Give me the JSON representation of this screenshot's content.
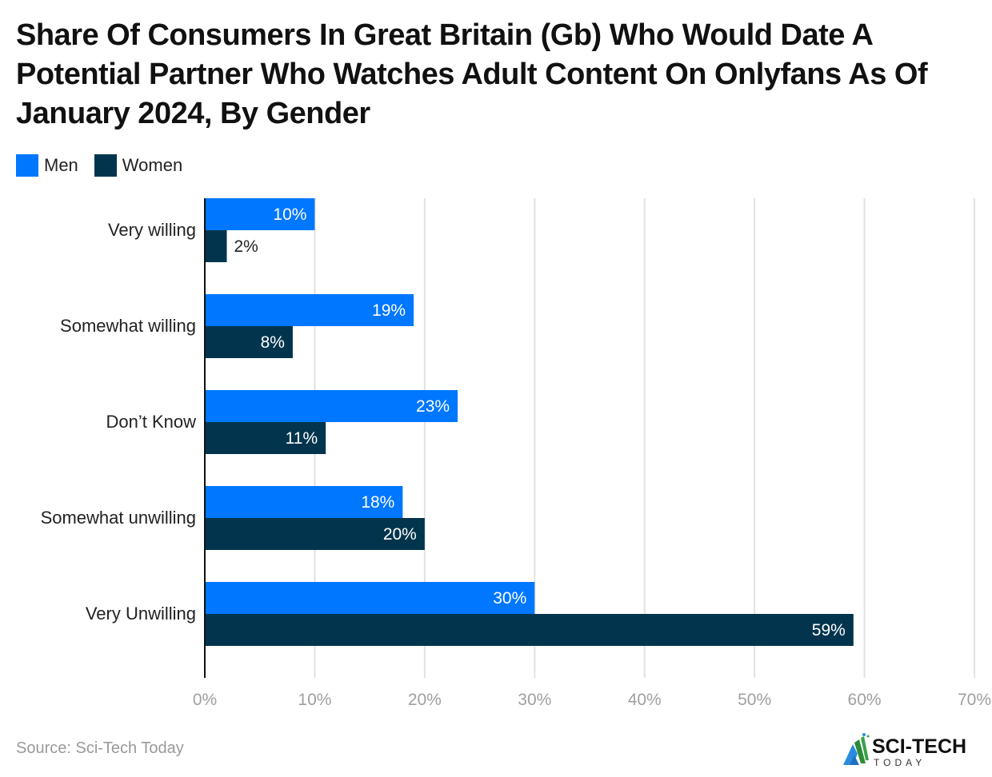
{
  "chart_data": {
    "type": "bar",
    "orientation": "horizontal",
    "title": "Share Of Consumers In Great Britain (Gb) Who Would Date A Potential Partner Who Watches Adult Content On Onlyfans As Of January 2024, By Gender",
    "categories": [
      "Very willing",
      "Somewhat willing",
      "Don’t Know",
      "Somewhat unwilling",
      "Very Unwilling"
    ],
    "series": [
      {
        "name": "Men",
        "color": "#0077ff",
        "values": [
          10,
          19,
          23,
          18,
          30
        ],
        "labels": [
          "10%",
          "19%",
          "23%",
          "18%",
          "30%"
        ]
      },
      {
        "name": "Women",
        "color": "#02354d",
        "values": [
          2,
          8,
          11,
          20,
          59
        ],
        "labels": [
          "2%",
          "8%",
          "11%",
          "20%",
          "59%"
        ]
      }
    ],
    "xlabel": "",
    "ylabel": "",
    "xlim": [
      0,
      70
    ],
    "xticks": [
      0,
      10,
      20,
      30,
      40,
      50,
      60,
      70
    ],
    "xtick_labels": [
      "0%",
      "10%",
      "20%",
      "30%",
      "40%",
      "50%",
      "60%",
      "70%"
    ],
    "grid": true,
    "legend_position": "top-left"
  },
  "footer": {
    "source": "Source: Sci-Tech Today",
    "logo_text_main": "SCI-TECH",
    "logo_text_sub": "TODAY"
  }
}
